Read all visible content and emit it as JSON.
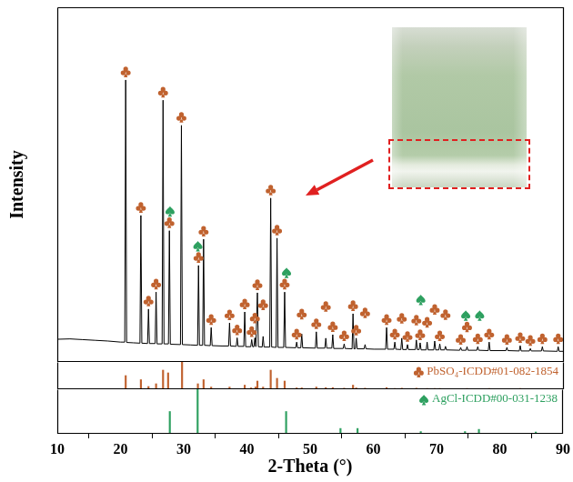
{
  "chart_data": [
    {
      "type": "line",
      "y_label": "Intensity",
      "x": [
        10.0,
        12.0,
        14.0,
        16.0,
        18.0,
        20.0,
        20.65,
        20.8,
        20.95,
        22.0,
        23.05,
        23.2,
        23.35,
        24.25,
        24.4,
        24.55,
        25.45,
        25.6,
        25.75,
        26.55,
        26.7,
        26.85,
        27.55,
        27.7,
        27.85,
        29.45,
        29.6,
        29.75,
        31.0,
        32.15,
        32.3,
        32.45,
        32.95,
        33.1,
        33.25,
        34.15,
        34.3,
        34.45,
        36.0,
        37.05,
        37.2,
        37.35,
        38.25,
        38.4,
        38.55,
        39.45,
        39.6,
        39.75,
        40.55,
        40.7,
        40.85,
        41.05,
        41.2,
        41.35,
        41.45,
        41.6,
        41.75,
        42.35,
        42.5,
        42.65,
        43.55,
        43.7,
        43.85,
        44.55,
        44.7,
        44.85,
        45.75,
        45.9,
        46.05,
        47.65,
        47.8,
        47.95,
        48.45,
        48.6,
        48.75,
        50.75,
        50.9,
        51.05,
        52.25,
        52.4,
        52.55,
        53.35,
        53.5,
        53.65,
        55.15,
        55.3,
        55.45,
        56.55,
        56.7,
        56.85,
        57.05,
        57.2,
        57.35,
        58.45,
        58.6,
        58.75,
        60.0,
        61.85,
        62.0,
        62.15,
        63.15,
        63.3,
        63.45,
        64.25,
        64.4,
        64.55,
        65.15,
        65.3,
        65.45,
        66.55,
        66.7,
        66.85,
        67.15,
        67.3,
        67.45,
        68.25,
        68.4,
        68.55,
        69.45,
        69.6,
        69.75,
        70.25,
        70.4,
        70.55,
        71.15,
        71.3,
        71.45,
        73.55,
        73.7,
        73.85,
        74.55,
        74.7,
        74.85,
        76.25,
        76.4,
        76.55,
        78.05,
        78.2,
        78.35,
        80.85,
        81.0,
        81.15,
        82.95,
        83.1,
        83.25,
        84.55,
        84.7,
        84.85,
        86.45,
        86.6,
        86.75,
        88.95,
        89.1,
        89.25,
        90.0
      ],
      "values": [
        6.4,
        6.5,
        6.3,
        6.1,
        5.9,
        5.6,
        5.6,
        79.5,
        5.5,
        5.4,
        5.3,
        41.3,
        5.3,
        5.2,
        14.9,
        5.2,
        5.2,
        19.7,
        5.1,
        5.1,
        73.8,
        5.1,
        5.1,
        37.0,
        5.0,
        4.9,
        66.7,
        4.9,
        4.8,
        4.7,
        27.2,
        4.7,
        4.7,
        34.6,
        4.7,
        4.6,
        9.7,
        4.6,
        4.5,
        4.5,
        11.0,
        4.5,
        4.4,
        6.8,
        4.4,
        4.4,
        14.1,
        4.3,
        4.3,
        6.3,
        4.3,
        4.3,
        6.8,
        4.3,
        4.3,
        19.5,
        4.3,
        4.2,
        7.2,
        4.2,
        4.2,
        46.2,
        4.2,
        4.1,
        34.9,
        4.1,
        4.1,
        19.7,
        4.1,
        4.0,
        5.6,
        4.0,
        4.0,
        7.9,
        4.0,
        3.9,
        8.5,
        3.9,
        3.9,
        6.7,
        3.9,
        3.9,
        7.7,
        3.8,
        3.8,
        5.1,
        3.8,
        3.7,
        13.6,
        3.7,
        3.7,
        6.7,
        3.7,
        3.7,
        4.9,
        3.7,
        3.6,
        3.6,
        9.7,
        3.6,
        3.6,
        5.6,
        3.6,
        3.5,
        6.7,
        3.5,
        3.5,
        4.9,
        3.5,
        3.5,
        6.2,
        3.5,
        3.5,
        5.4,
        3.4,
        3.4,
        5.6,
        3.4,
        3.4,
        5.9,
        3.4,
        3.4,
        5.1,
        3.4,
        3.4,
        4.4,
        3.4,
        3.3,
        4.1,
        3.3,
        3.3,
        4.3,
        3.3,
        3.3,
        4.3,
        3.3,
        3.2,
        5.6,
        3.2,
        3.2,
        4.1,
        3.2,
        3.1,
        4.6,
        3.1,
        3.1,
        3.8,
        3.1,
        3.1,
        4.3,
        3.1,
        3.0,
        4.3,
        3.0,
        3.0
      ],
      "color": "#000000",
      "xlim": [
        10,
        90
      ],
      "ylim": [
        0,
        100
      ],
      "tick_labels": false,
      "grid": false,
      "markers": [
        {
          "marker": "club",
          "color": "#c0622f",
          "x": [
            20.8,
            23.2,
            24.4,
            25.6,
            26.7,
            27.7,
            29.6,
            32.3,
            33.1,
            34.3,
            37.2,
            38.4,
            39.6,
            40.7,
            41.2,
            41.6,
            42.5,
            43.7,
            44.7,
            45.9,
            47.8,
            48.6,
            50.9,
            52.4,
            53.5,
            55.3,
            56.7,
            57.2,
            58.6,
            62.0,
            63.3,
            64.4,
            65.3,
            66.7,
            67.3,
            68.4,
            69.6,
            70.4,
            71.3,
            73.7,
            74.7,
            76.4,
            78.2,
            81.0,
            83.1,
            84.7,
            86.6,
            89.1
          ]
        },
        {
          "marker": "spade",
          "color": "#2ea060",
          "x": [
            27.8,
            32.2,
            46.2,
            67.4,
            74.5,
            76.7
          ]
        }
      ]
    },
    {
      "type": "bar",
      "series": [
        {
          "name": "PbSO₄-ICDD#01-082-1854",
          "color": "#c0622f",
          "marker": "club",
          "x": [
            20.8,
            23.2,
            24.4,
            25.6,
            26.7,
            27.5,
            29.7,
            32.2,
            33.1,
            34.3,
            37.2,
            39.6,
            40.6,
            41.3,
            41.6,
            42.5,
            43.7,
            44.7,
            45.9,
            47.8,
            48.6,
            50.9,
            52.4,
            53.5,
            55.3,
            56.7,
            57.2,
            58.6,
            62.0,
            63.3,
            64.4,
            66.7,
            68.4,
            69.6,
            70.4,
            74.7,
            78.2,
            83.1
          ],
          "values": [
            50,
            35,
            10,
            20,
            70,
            60,
            100,
            20,
            35,
            8,
            8,
            15,
            5,
            8,
            30,
            8,
            70,
            40,
            30,
            5,
            5,
            8,
            6,
            6,
            4,
            15,
            5,
            4,
            6,
            3,
            4,
            4,
            3,
            3,
            3,
            3,
            3,
            3
          ]
        }
      ],
      "xlim": [
        10,
        90
      ],
      "ylim": [
        0,
        100
      ],
      "tick_labels": false,
      "grid": false,
      "legend": "upper right"
    },
    {
      "type": "bar",
      "series": [
        {
          "name": "AgCl-ICDD#00-031-1238",
          "color": "#2ea060",
          "marker": "spade",
          "x": [
            27.8,
            32.2,
            46.2,
            54.8,
            57.5,
            67.5,
            74.5,
            76.7,
            85.7
          ],
          "values": [
            50,
            100,
            50,
            12,
            12,
            5,
            5,
            10,
            4
          ]
        }
      ],
      "xlim": [
        10,
        90
      ],
      "ylim": [
        0,
        100
      ],
      "xticks": [
        10,
        20,
        30,
        40,
        50,
        60,
        70,
        80,
        90
      ],
      "x_label": "2-Theta (°)",
      "tick_labels": "x",
      "grid": false,
      "legend": "upper right"
    }
  ]
}
